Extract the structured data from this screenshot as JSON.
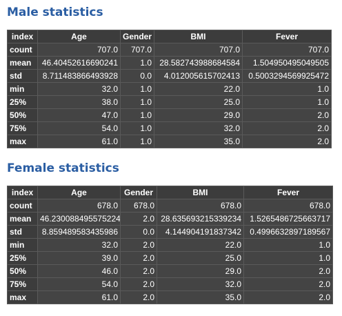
{
  "male": {
    "title": "Male statistics",
    "columns": [
      "index",
      "Age",
      "Gender",
      "BMI",
      "Fever"
    ],
    "rows": [
      [
        "count",
        "707.0",
        "707.0",
        "707.0",
        "707.0"
      ],
      [
        "mean",
        "46.40452616690241",
        "1.0",
        "28.582743988684584",
        "1.504950495049505"
      ],
      [
        "std",
        "8.711483866493928",
        "0.0",
        "4.012005615702413",
        "0.5003294569925472"
      ],
      [
        "min",
        "32.0",
        "1.0",
        "22.0",
        "1.0"
      ],
      [
        "25%",
        "38.0",
        "1.0",
        "25.0",
        "1.0"
      ],
      [
        "50%",
        "47.0",
        "1.0",
        "29.0",
        "2.0"
      ],
      [
        "75%",
        "54.0",
        "1.0",
        "32.0",
        "2.0"
      ],
      [
        "max",
        "61.0",
        "1.0",
        "35.0",
        "2.0"
      ]
    ]
  },
  "female": {
    "title": "Female statistics",
    "columns": [
      "index",
      "Age",
      "Gender",
      "BMI",
      "Fever"
    ],
    "rows": [
      [
        "count",
        "678.0",
        "678.0",
        "678.0",
        "678.0"
      ],
      [
        "mean",
        "46.230088495575224",
        "2.0",
        "28.635693215339234",
        "1.5265486725663717"
      ],
      [
        "std",
        "8.859489583435986",
        "0.0",
        "4.144904191837342",
        "0.4996632897189567"
      ],
      [
        "min",
        "32.0",
        "2.0",
        "22.0",
        "1.0"
      ],
      [
        "25%",
        "39.0",
        "2.0",
        "25.0",
        "1.0"
      ],
      [
        "50%",
        "46.0",
        "2.0",
        "29.0",
        "2.0"
      ],
      [
        "75%",
        "54.0",
        "2.0",
        "32.0",
        "2.0"
      ],
      [
        "max",
        "61.0",
        "2.0",
        "35.0",
        "2.0"
      ]
    ]
  }
}
